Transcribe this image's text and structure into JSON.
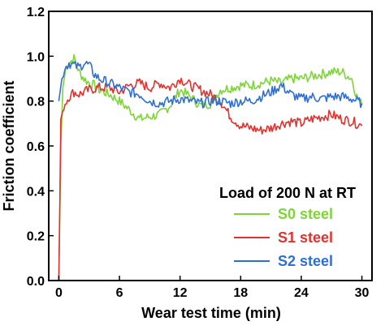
{
  "chart_data": {
    "type": "line",
    "xlabel": "Wear test time (min)",
    "ylabel": "Friction coefficient",
    "xlim": [
      -1,
      31
    ],
    "ylim": [
      0.0,
      1.2
    ],
    "xticks": [
      0,
      6,
      12,
      18,
      24,
      30
    ],
    "yticks": [
      0.0,
      0.2,
      0.4,
      0.6,
      0.8,
      1.0,
      1.2
    ],
    "xtick_labels": [
      "0",
      "6",
      "12",
      "18",
      "24",
      "30"
    ],
    "ytick_labels": [
      "0.0",
      "0.2",
      "0.4",
      "0.6",
      "0.8",
      "1.0",
      "1.2"
    ],
    "grid": false,
    "legend": {
      "title": "Load of 200 N at RT",
      "placement": "lower-right"
    },
    "series": [
      {
        "name": "S0 steel",
        "color": "#7fd43a",
        "x": [
          0,
          0.2,
          0.4,
          0.7,
          1,
          1.5,
          2,
          2.5,
          3,
          3.5,
          4,
          5,
          6,
          7,
          8,
          9,
          10,
          11,
          12,
          13,
          14,
          15,
          16,
          17,
          18,
          19,
          20,
          21,
          22,
          23,
          24,
          25,
          26,
          27,
          28,
          29,
          29.5,
          30
        ],
        "y": [
          0.0,
          0.6,
          0.86,
          0.95,
          0.97,
          0.99,
          0.93,
          0.9,
          0.88,
          0.87,
          0.85,
          0.83,
          0.8,
          0.76,
          0.72,
          0.73,
          0.74,
          0.78,
          0.85,
          0.82,
          0.78,
          0.79,
          0.85,
          0.86,
          0.87,
          0.87,
          0.88,
          0.89,
          0.88,
          0.9,
          0.9,
          0.91,
          0.92,
          0.93,
          0.93,
          0.9,
          0.82,
          0.78
        ]
      },
      {
        "name": "S1 steel",
        "color": "#e0322f",
        "x": [
          0,
          0.2,
          0.5,
          1,
          1.5,
          2,
          3,
          4,
          5,
          6,
          7,
          8,
          9,
          10,
          11,
          12,
          13,
          14,
          15,
          16,
          17,
          18,
          19,
          20,
          21,
          22,
          23,
          24,
          25,
          26,
          27,
          28,
          29,
          30
        ],
        "y": [
          0.0,
          0.72,
          0.78,
          0.82,
          0.84,
          0.83,
          0.85,
          0.86,
          0.86,
          0.84,
          0.87,
          0.88,
          0.86,
          0.88,
          0.86,
          0.9,
          0.87,
          0.85,
          0.83,
          0.8,
          0.73,
          0.69,
          0.68,
          0.67,
          0.68,
          0.7,
          0.71,
          0.7,
          0.72,
          0.73,
          0.74,
          0.72,
          0.71,
          0.69
        ]
      },
      {
        "name": "S2 steel",
        "color": "#2f6fd0",
        "x": [
          0,
          0.3,
          0.6,
          1,
          1.5,
          2,
          2.5,
          3,
          3.5,
          4,
          5,
          6,
          7,
          8,
          9,
          10,
          11,
          12,
          13,
          14,
          15,
          16,
          17,
          18,
          19,
          20,
          21,
          22,
          23,
          24,
          25,
          26,
          27,
          28,
          29,
          30
        ],
        "y": [
          0.8,
          0.9,
          0.95,
          0.97,
          0.96,
          0.95,
          0.97,
          0.96,
          0.92,
          0.9,
          0.88,
          0.86,
          0.84,
          0.83,
          0.8,
          0.79,
          0.8,
          0.81,
          0.8,
          0.79,
          0.8,
          0.8,
          0.79,
          0.8,
          0.8,
          0.82,
          0.84,
          0.87,
          0.83,
          0.81,
          0.82,
          0.81,
          0.82,
          0.82,
          0.81,
          0.79
        ]
      }
    ]
  }
}
